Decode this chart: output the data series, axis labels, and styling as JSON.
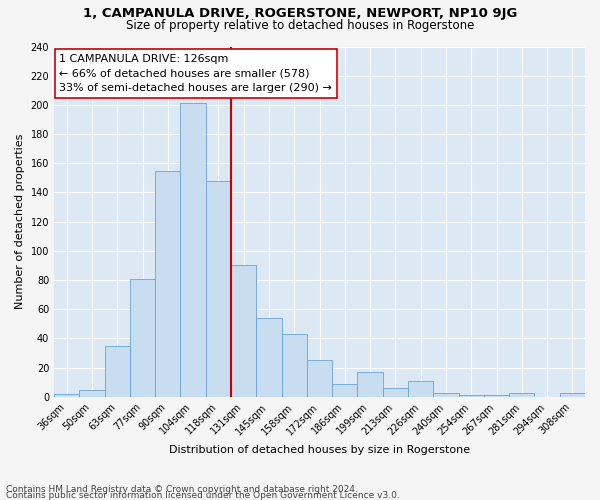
{
  "title": "1, CAMPANULA DRIVE, ROGERSTONE, NEWPORT, NP10 9JG",
  "subtitle": "Size of property relative to detached houses in Rogerstone",
  "xlabel": "Distribution of detached houses by size in Rogerstone",
  "ylabel": "Number of detached properties",
  "categories": [
    "36sqm",
    "50sqm",
    "63sqm",
    "77sqm",
    "90sqm",
    "104sqm",
    "118sqm",
    "131sqm",
    "145sqm",
    "158sqm",
    "172sqm",
    "186sqm",
    "199sqm",
    "213sqm",
    "226sqm",
    "240sqm",
    "254sqm",
    "267sqm",
    "281sqm",
    "294sqm",
    "308sqm"
  ],
  "values": [
    2,
    5,
    35,
    81,
    155,
    201,
    148,
    90,
    54,
    43,
    25,
    9,
    17,
    6,
    11,
    3,
    1,
    1,
    3,
    0,
    3
  ],
  "bar_color": "#c9ddf0",
  "bar_edge_color": "#6ba3d6",
  "marker_color": "#cc0000",
  "annotation_title": "1 CAMPANULA DRIVE: 126sqm",
  "annotation_line1": "← 66% of detached houses are smaller (578)",
  "annotation_line2": "33% of semi-detached houses are larger (290) →",
  "annotation_box_color": "#ffffff",
  "annotation_box_edge": "#cc0000",
  "footnote1": "Contains HM Land Registry data © Crown copyright and database right 2024.",
  "footnote2": "Contains public sector information licensed under the Open Government Licence v3.0.",
  "ylim": [
    0,
    240
  ],
  "yticks": [
    0,
    20,
    40,
    60,
    80,
    100,
    120,
    140,
    160,
    180,
    200,
    220,
    240
  ],
  "background_color": "#dde8f5",
  "grid_color": "#ffffff",
  "fig_bg_color": "#f5f5f5",
  "title_fontsize": 9.5,
  "subtitle_fontsize": 8.5,
  "axis_label_fontsize": 8,
  "tick_fontsize": 7,
  "annotation_fontsize": 8,
  "footnote_fontsize": 6.5
}
